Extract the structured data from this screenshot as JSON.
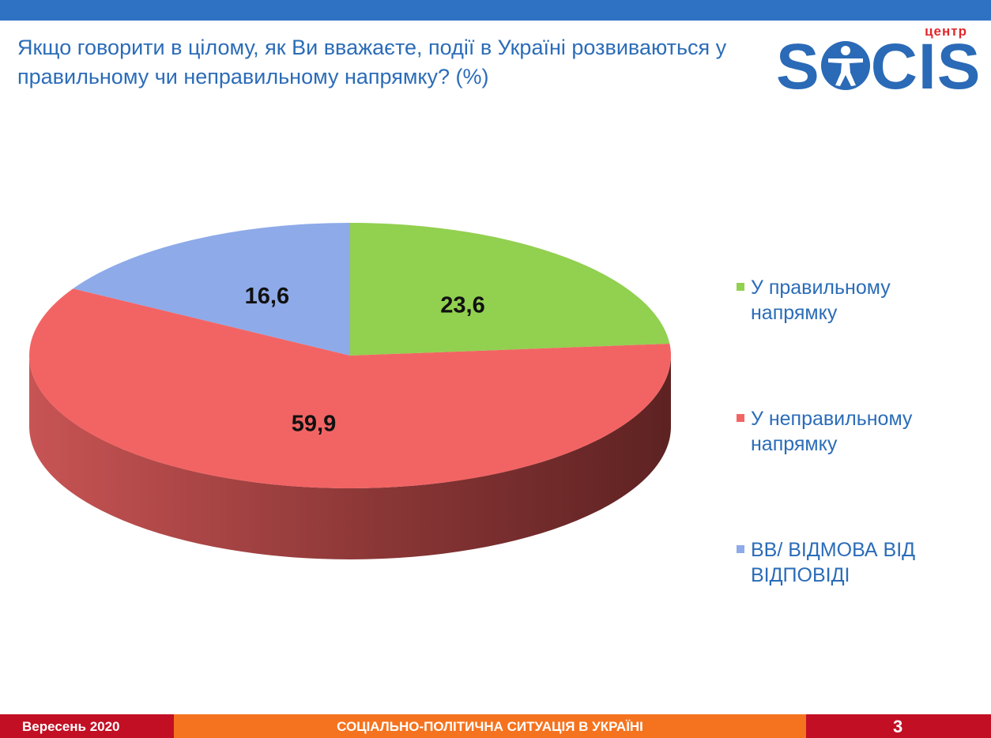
{
  "title": "Якщо говорити в цілому, як Ви вважаєте, події в Україні розвиваються у правильному чи неправильному напрямку? (%)",
  "logo": {
    "small_text": "центр",
    "main_left": "S",
    "main_right": "CIS",
    "main_color": "#2a6ab7",
    "small_color": "#e1262b"
  },
  "chart_data": {
    "type": "pie",
    "title": "Якщо говорити в цілому, як Ви вважаєте, події в Україні розвиваються у правильному чи неправильному напрямку? (%)",
    "legend_position": "right",
    "categories": [
      "У правильному напрямку",
      "У неправильному напрямку",
      "ВВ/ ВІДМОВА ВІД ВІДПОВІДІ"
    ],
    "values": [
      23.6,
      59.9,
      16.6
    ],
    "labels": [
      "23,6",
      "59,9",
      "16,6"
    ],
    "colors": [
      "#92d050",
      "#f26464",
      "#8eaae8"
    ],
    "side_colors": [
      "#5f8a30",
      "#9a2f2f",
      "#5a6fa0"
    ]
  },
  "legend": [
    {
      "line1": "У правильному",
      "line2": "напрямку"
    },
    {
      "line1": "У неправильному",
      "line2": "напрямку"
    },
    {
      "line1": "ВВ/ ВІДМОВА ВІД",
      "line2": "ВІДПОВІДІ"
    }
  ],
  "footer": {
    "date": "Вересень 2020",
    "center": "СОЦІАЛЬНО-ПОЛІТИЧНА СИТУАЦІЯ В УКРАЇНІ",
    "page": "3"
  }
}
